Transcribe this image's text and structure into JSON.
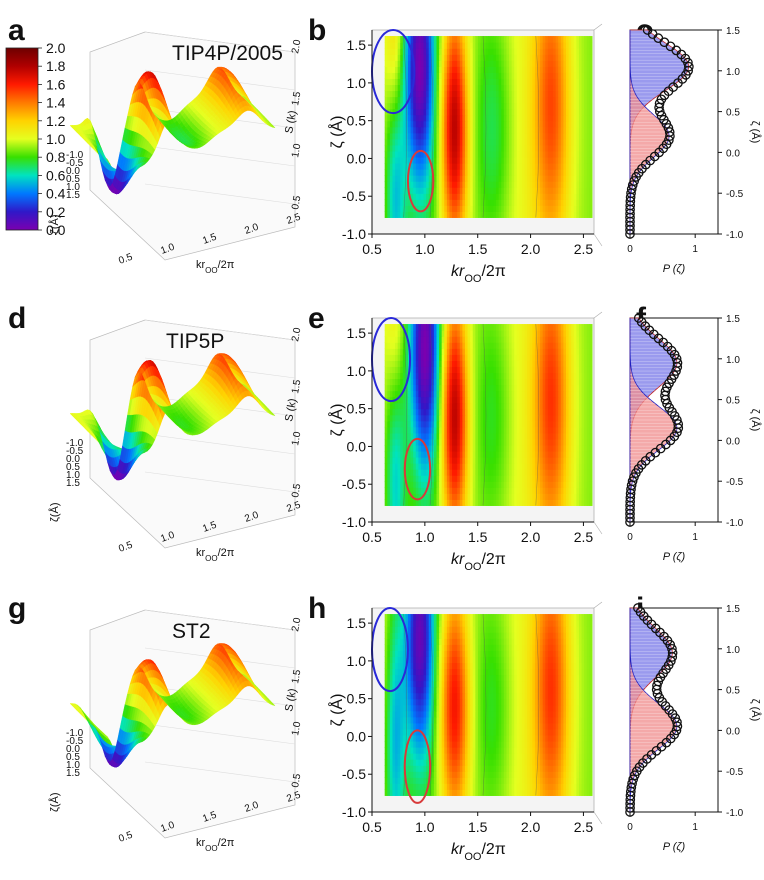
{
  "colorbar": {
    "ticks": [
      "2.0",
      "1.8",
      "1.6",
      "1.4",
      "1.2",
      "1.0",
      "0.8",
      "0.6",
      "0.4",
      "0.2",
      "0.0"
    ],
    "stops": [
      "#6e0000",
      "#b00000",
      "#ff1a00",
      "#ff7a00",
      "#ffd200",
      "#e5ff20",
      "#38e000",
      "#00e3c0",
      "#0078ff",
      "#3018c8",
      "#7a00b0"
    ]
  },
  "rows": [
    {
      "model": "TIP4P/2005",
      "labels": [
        "a",
        "b",
        "c"
      ]
    },
    {
      "model": "TIP5P",
      "labels": [
        "d",
        "e",
        "f"
      ]
    },
    {
      "model": "ST2",
      "labels": [
        "g",
        "h",
        "i"
      ]
    }
  ],
  "chart_data": [
    {
      "type": "surface",
      "panel": "a",
      "model": "TIP4P/2005",
      "xticks": [
        "0.5",
        "1.0",
        "1.5",
        "2.0",
        "2.5"
      ],
      "xlabel": "kr",
      "xlabel_sub": "OO",
      "xlabel_tail": "/2π",
      "yticks": [
        "-1.0",
        "-0.5",
        "0.0",
        "0.5",
        "1.0",
        "1.5"
      ],
      "ylabel": "ζ(Å)",
      "zticks": [
        "0.5",
        "1.0",
        "1.5",
        "2.0"
      ],
      "zlabel": "S (k)",
      "zlim": [
        0,
        2.2
      ]
    },
    {
      "type": "heatmap",
      "panel": "b",
      "model": "TIP4P/2005",
      "xticks": [
        "0.5",
        "1.0",
        "1.5",
        "2.0",
        "2.5"
      ],
      "xlim": [
        0.5,
        2.6
      ],
      "xlabel": "kr",
      "xlabel_sub": "OO",
      "xlabel_tail": "/2π",
      "yticks": [
        "-1.0",
        "-0.5",
        "0.0",
        "0.5",
        "1.0",
        "1.5"
      ],
      "ylim": [
        -1.0,
        1.7
      ],
      "ylabel": "ζ (Å)",
      "peaks": [
        {
          "k": 0.72,
          "zeta": 1.4,
          "value": 1.3,
          "width": 0.06
        },
        {
          "k": 0.72,
          "zeta": -0.3,
          "value": 0.5,
          "width": 0.07
        },
        {
          "k": 0.95,
          "zeta": 1.2,
          "value": 0.1,
          "width": 0.1
        },
        {
          "k": 1.28,
          "zeta": 0.4,
          "value": 1.9,
          "width": 0.09
        },
        {
          "k": 1.65,
          "zeta": 0.4,
          "value": 0.75,
          "width": 0.12
        },
        {
          "k": 2.2,
          "zeta": 1.2,
          "value": 1.35,
          "width": 0.12
        },
        {
          "k": 2.2,
          "zeta": -0.1,
          "value": 1.25,
          "width": 0.12
        }
      ],
      "ellipses": [
        {
          "color": "#2a2ad8",
          "k": 0.7,
          "zeta": 1.15,
          "dk": 0.2,
          "dz": 0.55
        },
        {
          "color": "#d83a3a",
          "k": 0.96,
          "zeta": -0.3,
          "dk": 0.12,
          "dz": 0.4
        }
      ]
    },
    {
      "type": "area",
      "panel": "c",
      "model": "TIP4P/2005",
      "xticks": [
        "0",
        "1"
      ],
      "xlim": [
        0,
        1.35
      ],
      "xlabel": "P (ζ)",
      "yticks": [
        "-1.0",
        "-0.5",
        "0.0",
        "0.5",
        "1.0",
        "1.5"
      ],
      "ylim": [
        -1.0,
        1.5
      ],
      "ylabel": "ζ (Å)",
      "series": [
        {
          "color": "#7878e8",
          "mu": 1.05,
          "sigma": 0.29,
          "amp": 0.9
        },
        {
          "color": "#f08c8c",
          "mu": 0.2,
          "sigma": 0.26,
          "amp": 0.6
        }
      ],
      "total_points": {
        "zeta": [
          -1.0,
          -0.95,
          -0.9,
          -0.85,
          -0.8,
          -0.75,
          -0.7,
          -0.65,
          -0.6,
          -0.55,
          -0.5,
          -0.45,
          -0.4,
          -0.35,
          -0.3,
          -0.25,
          -0.2,
          -0.15,
          -0.1,
          -0.05,
          0.0,
          0.05,
          0.1,
          0.15,
          0.2,
          0.25,
          0.3,
          0.35,
          0.4,
          0.45,
          0.5,
          0.55,
          0.6,
          0.65,
          0.7,
          0.75,
          0.8,
          0.85,
          0.9,
          0.95,
          1.0,
          1.05,
          1.1,
          1.15,
          1.2,
          1.25,
          1.3,
          1.35,
          1.4,
          1.45,
          1.5
        ]
      }
    },
    {
      "type": "surface",
      "panel": "d",
      "model": "TIP5P",
      "xticks": [
        "0.5",
        "1.0",
        "1.5",
        "2.0",
        "2.5"
      ],
      "xlabel": "kr",
      "xlabel_sub": "OO",
      "xlabel_tail": "/2π",
      "yticks": [
        "-1.0",
        "-0.5",
        "0.0",
        "0.5",
        "1.0",
        "1.5"
      ],
      "ylabel": "ζ(Å)",
      "zticks": [
        "0.5",
        "1.0",
        "1.5",
        "2.0"
      ],
      "zlabel": "S (k)",
      "zlim": [
        0,
        2.2
      ]
    },
    {
      "type": "heatmap",
      "panel": "e",
      "model": "TIP5P",
      "xticks": [
        "0.5",
        "1.0",
        "1.5",
        "2.0",
        "2.5"
      ],
      "xlim": [
        0.5,
        2.6
      ],
      "xlabel": "kr",
      "xlabel_sub": "OO",
      "xlabel_tail": "/2π",
      "yticks": [
        "-1.0",
        "-0.5",
        "0.0",
        "0.5",
        "1.0",
        "1.5"
      ],
      "ylim": [
        -1.0,
        1.7
      ],
      "ylabel": "ζ (Å)",
      "peaks": [
        {
          "k": 0.72,
          "zeta": 1.4,
          "value": 1.2,
          "width": 0.06
        },
        {
          "k": 0.72,
          "zeta": -0.3,
          "value": 0.55,
          "width": 0.07
        },
        {
          "k": 1.0,
          "zeta": 1.3,
          "value": 0.1,
          "width": 0.1
        },
        {
          "k": 1.28,
          "zeta": 0.4,
          "value": 1.9,
          "width": 0.09
        },
        {
          "k": 1.65,
          "zeta": 0.4,
          "value": 0.8,
          "width": 0.12
        },
        {
          "k": 2.2,
          "zeta": 1.2,
          "value": 1.35,
          "width": 0.12
        },
        {
          "k": 2.2,
          "zeta": -0.1,
          "value": 1.3,
          "width": 0.12
        }
      ],
      "ellipses": [
        {
          "color": "#2a2ad8",
          "k": 0.68,
          "zeta": 1.15,
          "dk": 0.18,
          "dz": 0.55
        },
        {
          "color": "#d83a3a",
          "k": 0.93,
          "zeta": -0.3,
          "dk": 0.12,
          "dz": 0.4
        }
      ]
    },
    {
      "type": "area",
      "panel": "f",
      "model": "TIP5P",
      "xticks": [
        "0",
        "1"
      ],
      "xlim": [
        0,
        1.35
      ],
      "xlabel": "P (ζ)",
      "yticks": [
        "-1.0",
        "-0.5",
        "0.0",
        "0.5",
        "1.0",
        "1.5"
      ],
      "ylim": [
        -1.0,
        1.5
      ],
      "ylabel": "ζ (Å)",
      "series": [
        {
          "color": "#7878e8",
          "mu": 0.95,
          "sigma": 0.3,
          "amp": 0.72
        },
        {
          "color": "#f08c8c",
          "mu": 0.15,
          "sigma": 0.27,
          "amp": 0.72
        }
      ],
      "total_points": {
        "zeta": [
          -1.0,
          -0.95,
          -0.9,
          -0.85,
          -0.8,
          -0.75,
          -0.7,
          -0.65,
          -0.6,
          -0.55,
          -0.5,
          -0.45,
          -0.4,
          -0.35,
          -0.3,
          -0.25,
          -0.2,
          -0.15,
          -0.1,
          -0.05,
          0.0,
          0.05,
          0.1,
          0.15,
          0.2,
          0.25,
          0.3,
          0.35,
          0.4,
          0.45,
          0.5,
          0.55,
          0.6,
          0.65,
          0.7,
          0.75,
          0.8,
          0.85,
          0.9,
          0.95,
          1.0,
          1.05,
          1.1,
          1.15,
          1.2,
          1.25,
          1.3,
          1.35,
          1.4,
          1.45,
          1.5
        ]
      }
    },
    {
      "type": "surface",
      "panel": "g",
      "model": "ST2",
      "xticks": [
        "0.5",
        "1.0",
        "1.5",
        "2.0",
        "2.5"
      ],
      "xlabel": "kr",
      "xlabel_sub": "OO",
      "xlabel_tail": "/2π",
      "yticks": [
        "-1.0",
        "-0.5",
        "0.0",
        "0.5",
        "1.0",
        "1.5"
      ],
      "ylabel": "ζ(Å)",
      "zticks": [
        "0.5",
        "1.0",
        "1.5",
        "2.0"
      ],
      "zlabel": "S (k)",
      "zlim": [
        0,
        2.2
      ]
    },
    {
      "type": "heatmap",
      "panel": "h",
      "model": "ST2",
      "xticks": [
        "0.5",
        "1.0",
        "1.5",
        "2.0",
        "2.5"
      ],
      "xlim": [
        0.5,
        2.6
      ],
      "xlabel": "kr",
      "xlabel_sub": "OO",
      "xlabel_tail": "/2π",
      "yticks": [
        "-1.0",
        "-0.5",
        "0.0",
        "0.5",
        "1.0",
        "1.5"
      ],
      "ylim": [
        -1.0,
        1.7
      ],
      "ylabel": "ζ (Å)",
      "peaks": [
        {
          "k": 0.72,
          "zeta": 1.45,
          "value": 0.9,
          "width": 0.06
        },
        {
          "k": 0.72,
          "zeta": -0.3,
          "value": 0.6,
          "width": 0.07
        },
        {
          "k": 0.95,
          "zeta": 1.3,
          "value": 0.15,
          "width": 0.1
        },
        {
          "k": 1.28,
          "zeta": 0.4,
          "value": 1.75,
          "width": 0.1
        },
        {
          "k": 1.65,
          "zeta": 0.4,
          "value": 0.8,
          "width": 0.12
        },
        {
          "k": 2.2,
          "zeta": 1.2,
          "value": 1.35,
          "width": 0.12
        },
        {
          "k": 2.2,
          "zeta": -0.1,
          "value": 1.3,
          "width": 0.12
        }
      ],
      "ellipses": [
        {
          "color": "#2a2ad8",
          "k": 0.67,
          "zeta": 1.15,
          "dk": 0.17,
          "dz": 0.55
        },
        {
          "color": "#d83a3a",
          "k": 0.93,
          "zeta": -0.4,
          "dk": 0.12,
          "dz": 0.48
        }
      ]
    },
    {
      "type": "area",
      "panel": "i",
      "model": "ST2",
      "xticks": [
        "0",
        "1"
      ],
      "xlim": [
        0,
        1.35
      ],
      "xlabel": "P (ζ)",
      "yticks": [
        "-1.0",
        "-0.5",
        "0.0",
        "0.5",
        "1.0",
        "1.5"
      ],
      "ylim": [
        -1.0,
        1.5
      ],
      "ylabel": "ζ (Å)",
      "series": [
        {
          "color": "#7878e8",
          "mu": 0.95,
          "sigma": 0.3,
          "amp": 0.65
        },
        {
          "color": "#f08c8c",
          "mu": 0.05,
          "sigma": 0.28,
          "amp": 0.72
        }
      ],
      "total_points": {
        "zeta": [
          -1.0,
          -0.95,
          -0.9,
          -0.85,
          -0.8,
          -0.75,
          -0.7,
          -0.65,
          -0.6,
          -0.55,
          -0.5,
          -0.45,
          -0.4,
          -0.35,
          -0.3,
          -0.25,
          -0.2,
          -0.15,
          -0.1,
          -0.05,
          0.0,
          0.05,
          0.1,
          0.15,
          0.2,
          0.25,
          0.3,
          0.35,
          0.4,
          0.45,
          0.5,
          0.55,
          0.6,
          0.65,
          0.7,
          0.75,
          0.8,
          0.85,
          0.9,
          0.95,
          1.0,
          1.05,
          1.1,
          1.15,
          1.2,
          1.25,
          1.3,
          1.35,
          1.4,
          1.45,
          1.5
        ]
      }
    }
  ]
}
